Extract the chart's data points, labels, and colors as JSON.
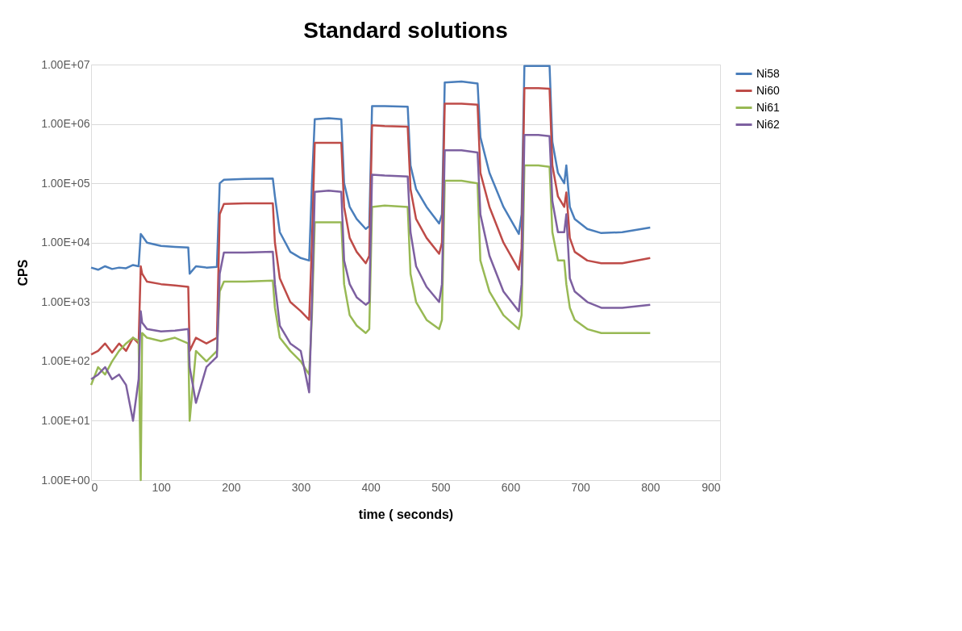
{
  "chart_data": {
    "type": "line",
    "title": "Standard solutions",
    "xlabel": "time ( seconds)",
    "ylabel": "CPS",
    "x": [
      0,
      10,
      20,
      30,
      40,
      50,
      60,
      68,
      71,
      73,
      80,
      100,
      120,
      139,
      141,
      150,
      165,
      180,
      184,
      190,
      220,
      260,
      263,
      270,
      285,
      300,
      312,
      316,
      320,
      340,
      358,
      362,
      370,
      380,
      393,
      398,
      402,
      420,
      453,
      457,
      465,
      480,
      498,
      502,
      506,
      530,
      553,
      557,
      570,
      590,
      612,
      616,
      620,
      640,
      656,
      660,
      668,
      677,
      680,
      685,
      692,
      710,
      730,
      760,
      800
    ],
    "series": [
      {
        "name": "Ni58",
        "color": "#4a7ebb",
        "values": [
          3800,
          3500,
          4000,
          3600,
          3800,
          3700,
          4200,
          4000,
          14000,
          13000,
          10000,
          8800,
          8500,
          8300,
          3000,
          4000,
          3800,
          3900,
          100000,
          115000,
          118000,
          120000,
          60000,
          15000,
          7000,
          5500,
          5000,
          100000,
          1200000,
          1250000,
          1200000,
          100000,
          40000,
          25000,
          17000,
          19000,
          2000000,
          2000000,
          1950000,
          200000,
          80000,
          40000,
          21000,
          30000,
          5000000,
          5200000,
          4800000,
          600000,
          150000,
          40000,
          14000,
          30000,
          9500000,
          9500000,
          9500000,
          500000,
          150000,
          100000,
          200000,
          40000,
          25000,
          17000,
          14500,
          15000,
          18000
        ]
      },
      {
        "name": "Ni60",
        "color": "#be4b48",
        "values": [
          130,
          150,
          200,
          140,
          200,
          150,
          250,
          200,
          4000,
          3000,
          2200,
          2000,
          1900,
          1800,
          150,
          250,
          200,
          250,
          30000,
          45000,
          46000,
          46000,
          10000,
          2500,
          1000,
          700,
          500,
          10000,
          480000,
          480000,
          480000,
          40000,
          12000,
          7000,
          4500,
          6000,
          950000,
          920000,
          900000,
          80000,
          25000,
          12000,
          6500,
          10000,
          2200000,
          2200000,
          2100000,
          150000,
          40000,
          10000,
          3500,
          8000,
          4000000,
          4000000,
          3900000,
          200000,
          60000,
          40000,
          70000,
          12000,
          7000,
          5000,
          4500,
          4500,
          5500
        ]
      },
      {
        "name": "Ni61",
        "color": "#98b954",
        "values": [
          40,
          80,
          60,
          100,
          150,
          200,
          250,
          220,
          1,
          300,
          250,
          220,
          250,
          200,
          10,
          150,
          100,
          150,
          1500,
          2200,
          2200,
          2300,
          800,
          250,
          150,
          100,
          60,
          600,
          22000,
          22000,
          22000,
          2000,
          600,
          400,
          300,
          350,
          40000,
          42000,
          40000,
          3000,
          1000,
          500,
          350,
          500,
          110000,
          110000,
          100000,
          5000,
          1500,
          600,
          350,
          600,
          200000,
          200000,
          190000,
          15000,
          5000,
          5000,
          2000,
          800,
          500,
          350,
          300,
          300,
          300
        ]
      },
      {
        "name": "Ni62",
        "color": "#7d60a0",
        "values": [
          50,
          60,
          80,
          50,
          60,
          40,
          10,
          50,
          700,
          450,
          350,
          320,
          330,
          350,
          80,
          20,
          80,
          120,
          3000,
          6800,
          6800,
          7000,
          2000,
          400,
          200,
          150,
          30,
          1000,
          72000,
          75000,
          72000,
          5000,
          2000,
          1200,
          900,
          1000,
          140000,
          135000,
          130000,
          15000,
          4000,
          1800,
          1000,
          2000,
          360000,
          360000,
          330000,
          30000,
          6000,
          1500,
          700,
          2000,
          650000,
          650000,
          620000,
          50000,
          15000,
          15000,
          30000,
          2500,
          1500,
          1000,
          800,
          800,
          900
        ]
      }
    ],
    "xlim": [
      0,
      900
    ],
    "xticks": [
      0,
      100,
      200,
      300,
      400,
      500,
      600,
      700,
      800,
      900
    ],
    "ylim": [
      1,
      10000000
    ],
    "yticks": [
      {
        "value": 1,
        "label": "1.00E+00"
      },
      {
        "value": 10,
        "label": "1.00E+01"
      },
      {
        "value": 100,
        "label": "1.00E+02"
      },
      {
        "value": 1000,
        "label": "1.00E+03"
      },
      {
        "value": 10000,
        "label": "1.00E+04"
      },
      {
        "value": 100000,
        "label": "1.00E+05"
      },
      {
        "value": 1000000,
        "label": "1.00E+06"
      },
      {
        "value": 10000000,
        "label": "1.00E+07"
      }
    ],
    "log": "y",
    "grid": "y",
    "legend": "right",
    "marker": "none",
    "line_style": "solid"
  }
}
